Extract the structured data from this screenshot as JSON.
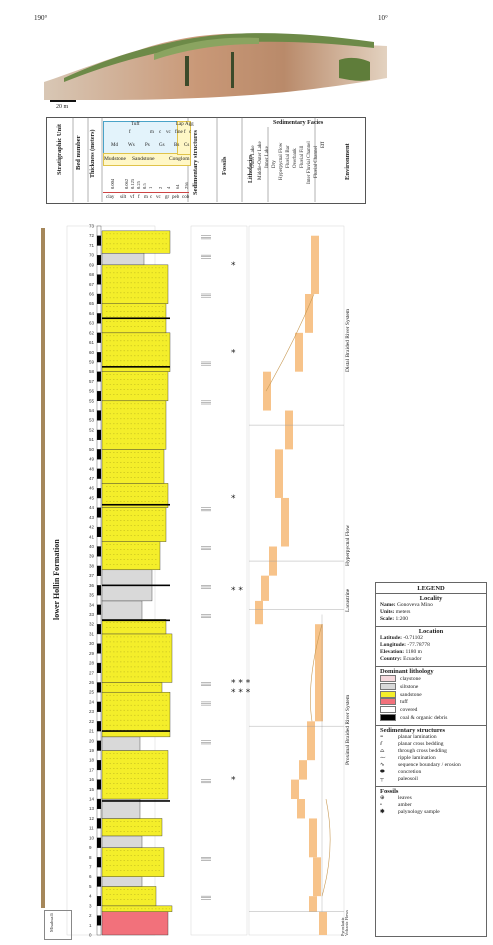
{
  "photo": {
    "left_bearing": "190°",
    "right_bearing": "10°",
    "scale_label": "20 m"
  },
  "header": {
    "strat_unit": "Stratigraphic Unit",
    "bed_number": "Bed number",
    "thickness": "Thickness (meters)",
    "grain_top": [
      "Tuff",
      "Lap",
      "Agg"
    ],
    "grain_sub": [
      "f",
      "m",
      "c",
      "vc",
      "fine",
      "f",
      "c"
    ],
    "grain_classes": [
      "Md",
      "Ws",
      "Ps",
      "Gs",
      "Bs",
      "Cs"
    ],
    "grain_groups": [
      "Mudstone",
      "Sandstone",
      "Conglom"
    ],
    "grain_sizes": [
      "0.004",
      "0.062",
      "0.125",
      "0.25",
      "0.5",
      "1",
      "2",
      "4",
      "64",
      "256"
    ],
    "grain_labels": [
      "clay",
      "silt",
      "vf",
      "f",
      "m",
      "c",
      "vc",
      "gr",
      "peb",
      "cob"
    ],
    "sed_structures": "Sedimentary structures",
    "fossils": "Fossils",
    "lithofacies": "Lithofacies",
    "sed_facies": "Sedimentary Facies",
    "facies_cols": [
      "Outer Lake",
      "Middle-Outer Lake",
      "Inner Lake",
      "Dry",
      "Hyperpycnal Flow",
      "Fluvial Bar",
      "Overbank",
      "Fluvial Fill",
      "Inter Fluvial Channel",
      "Fluvial Channel",
      "Eff"
    ],
    "environment": "Environment"
  },
  "column": {
    "formation": "lower Hollin Formation",
    "basement": "Misahualli",
    "top_value": "72.5",
    "bed_numbers": [
      "72",
      "71",
      "70",
      "69",
      "68",
      "67",
      "66",
      "65",
      "64",
      "63",
      "62",
      "61",
      "60",
      "59",
      "58",
      "57",
      "56",
      "55",
      "54",
      "53",
      "52",
      "51",
      "50",
      "49",
      "48",
      "47",
      "46",
      "45",
      "44",
      "43",
      "42",
      "41",
      "40",
      "39",
      "38",
      "37",
      "36",
      "35",
      "34",
      "33",
      "32",
      "31",
      "30",
      "29",
      "28",
      "27",
      "26",
      "25",
      "24",
      "23",
      "22",
      "21",
      "20",
      "19",
      "18",
      "17",
      "16",
      "15",
      "14",
      "13",
      "12",
      "11",
      "10",
      "9",
      "8",
      "7",
      "6",
      "5",
      "4",
      "3",
      "2",
      "1"
    ],
    "meter_marks": [
      "73",
      "72",
      "71",
      "70",
      "69",
      "68",
      "67",
      "66",
      "65",
      "64",
      "63",
      "62",
      "61",
      "60",
      "59",
      "58",
      "57",
      "56",
      "55",
      "54",
      "53",
      "52",
      "51",
      "50",
      "49",
      "48",
      "47",
      "46",
      "45",
      "44",
      "43",
      "42",
      "41",
      "40",
      "39",
      "38",
      "37",
      "36",
      "35",
      "34",
      "33",
      "32",
      "31",
      "30",
      "29",
      "28",
      "27",
      "26",
      "25",
      "24",
      "23",
      "22",
      "21",
      "20",
      "19",
      "18",
      "17",
      "16",
      "15",
      "14",
      "13",
      "12",
      "11",
      "10",
      "9",
      "8",
      "7",
      "6",
      "5",
      "4",
      "3",
      "2",
      "1",
      "0"
    ],
    "fossil_marks": [
      "*",
      "*",
      "*",
      "*",
      "* *",
      "* * *",
      "*"
    ],
    "environments": [
      "Distal Braided River System",
      "Hyperpycnal Flow",
      "Lacustrine",
      "Proximal Braided River System",
      "Pyroclastic Volcanic Flows"
    ]
  },
  "legend": {
    "title": "LEGEND",
    "locality_title": "Locality",
    "name_label": "Name:",
    "name_value": "Gonoveva Mino",
    "units_label": "Units:",
    "units_value": "meters",
    "scale_label": "Scale:",
    "scale_value": "1:200",
    "location_title": "Location",
    "lat_label": "Latitude:",
    "lat_value": "-0.71102",
    "lon_label": "Longitude:",
    "lon_value": "-77.78778",
    "elev_label": "Elevation:",
    "elev_value": "1180 m",
    "country_label": "Country:",
    "country_value": "Ecuador",
    "lith_title": "Dominant lithology",
    "lithologies": [
      "claystone",
      "siltstone",
      "sandstone",
      "tuff",
      "covered",
      "coal & organic debris"
    ],
    "lith_colors": [
      "#f6d9dd",
      "#d9d9d9",
      "#f4ee2a",
      "#f2717b",
      "#ffffff",
      "#000000"
    ],
    "struct_title": "Sedimentary structures",
    "structures": [
      "planar lamination",
      "planar cross bedding",
      "through cross bedding",
      "ripple lamination",
      "sequence boundary / erosion",
      "concretion",
      "paleosoil"
    ],
    "fossils_title": "Fossils",
    "fossils": [
      "leaves",
      "amber",
      "palynology sample"
    ]
  },
  "colors": {
    "sandstone": "#f4ee2a",
    "siltstone": "#d9d9d9",
    "tuff": "#f2717b",
    "facies_bar": "#f7c38a",
    "formation_bar": "#a5875a",
    "header_blue": "#e3f3fb",
    "header_yellow": "#fff7c6"
  }
}
